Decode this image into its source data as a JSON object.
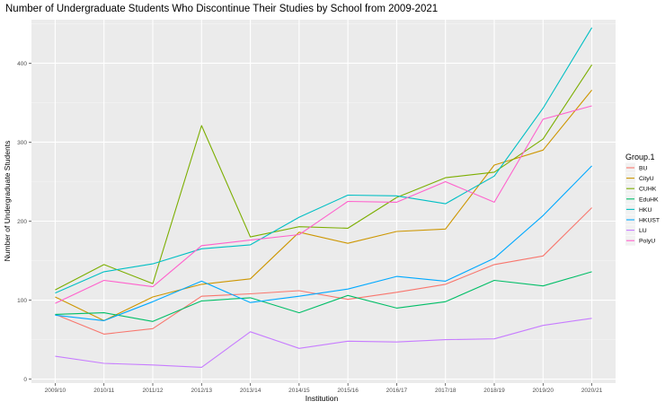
{
  "chart_data": {
    "type": "line",
    "title": "Number of Undergraduate Students Who Discontinue Their Studies by School from 2009-2021",
    "xlabel": "Institution",
    "ylabel": "Number of Undergraduate Students",
    "categories": [
      "2009/10",
      "2010/11",
      "2011/12",
      "2012/13",
      "2013/14",
      "2014/15",
      "2015/16",
      "2016/17",
      "2017/18",
      "2018/19",
      "2019/20",
      "2020/21"
    ],
    "yticks": [
      0,
      100,
      200,
      300,
      400
    ],
    "ylim": [
      -5,
      455
    ],
    "grid": true,
    "legend_title": "Group.1",
    "legend_position": "right",
    "series": [
      {
        "name": "BU",
        "color": "#F8766D",
        "values": [
          82,
          57,
          64,
          105,
          108,
          112,
          101,
          110,
          120,
          145,
          156,
          217
        ]
      },
      {
        "name": "CityU",
        "color": "#CD9600",
        "values": [
          104,
          74,
          104,
          120,
          127,
          186,
          172,
          187,
          190,
          271,
          290,
          366
        ]
      },
      {
        "name": "CUHK",
        "color": "#7CAE00",
        "values": [
          113,
          145,
          121,
          321,
          180,
          193,
          191,
          230,
          255,
          262,
          304,
          398
        ]
      },
      {
        "name": "EduHK",
        "color": "#00BE67",
        "values": [
          82,
          84,
          73,
          99,
          103,
          84,
          106,
          90,
          98,
          125,
          118,
          136
        ]
      },
      {
        "name": "HKU",
        "color": "#00BFC4",
        "values": [
          109,
          136,
          146,
          165,
          170,
          205,
          233,
          232,
          222,
          257,
          343,
          445
        ]
      },
      {
        "name": "HKUST",
        "color": "#00A9FF",
        "values": [
          81,
          74,
          98,
          124,
          97,
          105,
          114,
          130,
          124,
          153,
          207,
          270
        ]
      },
      {
        "name": "LU",
        "color": "#C77CFF",
        "values": [
          29,
          20,
          18,
          15,
          60,
          39,
          48,
          47,
          50,
          51,
          68,
          77
        ]
      },
      {
        "name": "PolyU",
        "color": "#FF61CC",
        "values": [
          96,
          125,
          117,
          169,
          176,
          183,
          225,
          224,
          250,
          224,
          329,
          346
        ]
      }
    ]
  }
}
